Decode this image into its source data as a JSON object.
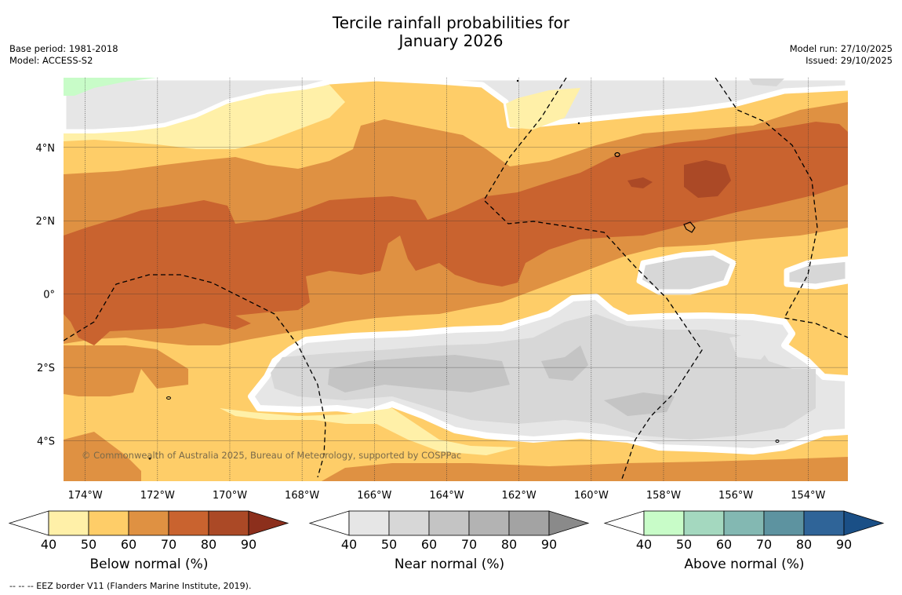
{
  "title": {
    "line1": "Tercile rainfall probabilities for",
    "line2": "January 2026"
  },
  "meta_left": {
    "base_period": "Base period: 1981-2018",
    "model": "Model: ACCESS-S2"
  },
  "meta_right": {
    "model_run": "Model run: 27/10/2025",
    "issued": "Issued: 29/10/2025"
  },
  "map": {
    "lon_range": [
      -174.6,
      -152.9
    ],
    "lat_range": [
      -5.1,
      5.9
    ],
    "lon_ticks": [
      {
        "value": -174,
        "label": "174°W"
      },
      {
        "value": -172,
        "label": "172°W"
      },
      {
        "value": -170,
        "label": "170°W"
      },
      {
        "value": -168,
        "label": "168°W"
      },
      {
        "value": -166,
        "label": "166°W"
      },
      {
        "value": -164,
        "label": "164°W"
      },
      {
        "value": -162,
        "label": "162°W"
      },
      {
        "value": -160,
        "label": "160°W"
      },
      {
        "value": -158,
        "label": "158°W"
      },
      {
        "value": -156,
        "label": "156°W"
      },
      {
        "value": -154,
        "label": "154°W"
      }
    ],
    "lat_ticks": [
      {
        "value": 4,
        "label": "4°N"
      },
      {
        "value": 2,
        "label": "2°N"
      },
      {
        "value": 0,
        "label": "0°"
      },
      {
        "value": -2,
        "label": "2°S"
      },
      {
        "value": -4,
        "label": "4°S"
      }
    ],
    "copyright": "© Commonwealth of Australia 2025, Bureau of Meteorology, supported by COSPPac"
  },
  "colors": {
    "below": [
      "#fff0a8",
      "#fecd68",
      "#df9142",
      "#c9632f",
      "#ab4926",
      "#8c2f1c"
    ],
    "near": [
      "#e6e6e6",
      "#d7d7d7",
      "#c4c4c4",
      "#b3b3b3",
      "#a3a3a3",
      "#8a8a8a"
    ],
    "above": [
      "#c8fcc8",
      "#a4d8bf",
      "#83b8b2",
      "#5d93a0",
      "#2f6498",
      "#1a4f86"
    ]
  },
  "colorbars": [
    {
      "name": "below",
      "title": "Below normal (%)",
      "labels": [
        "40",
        "50",
        "60",
        "70",
        "80",
        "90"
      ]
    },
    {
      "name": "near",
      "title": "Near normal (%)",
      "labels": [
        "40",
        "50",
        "60",
        "70",
        "80",
        "90"
      ]
    },
    {
      "name": "above",
      "title": "Above normal (%)",
      "labels": [
        "40",
        "50",
        "60",
        "70",
        "80",
        "90"
      ]
    }
  ],
  "footer": "--  --  -- EEZ border V11 (Flanders Marine Institute, 2019)."
}
